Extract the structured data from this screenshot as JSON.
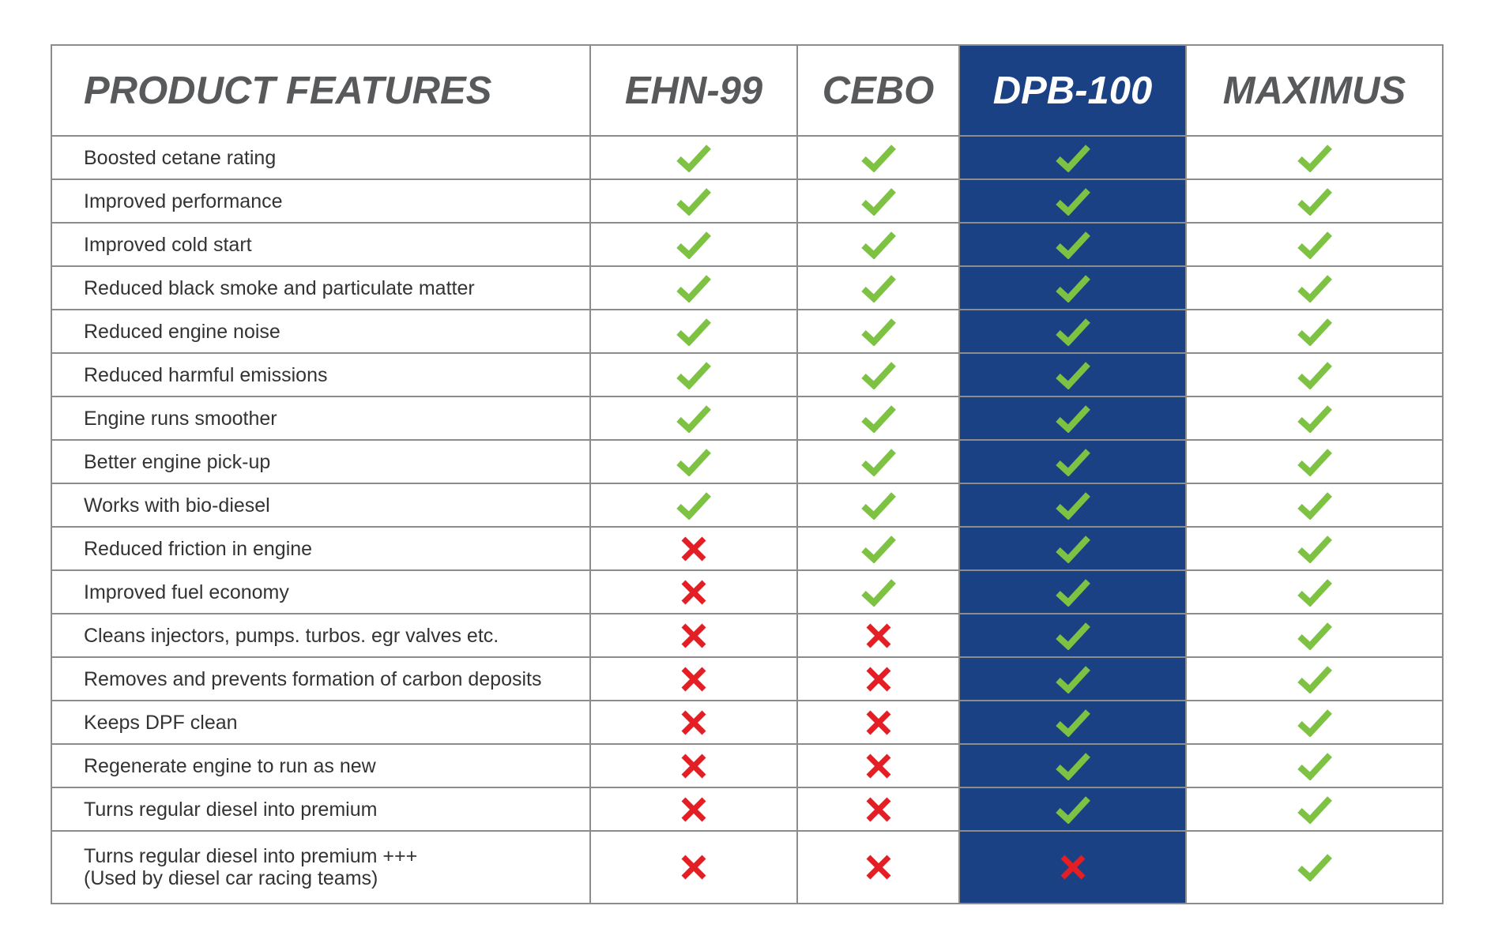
{
  "chart_data": {
    "type": "table",
    "header_label": "PRODUCT FEATURES",
    "products": [
      "EHN-99",
      "CEBO",
      "DPB-100",
      "MAXIMUS"
    ],
    "highlight_product": "DPB-100",
    "rows": [
      {
        "feature": [
          "Boosted cetane rating"
        ],
        "values": [
          true,
          true,
          true,
          true
        ]
      },
      {
        "feature": [
          "Improved performance"
        ],
        "values": [
          true,
          true,
          true,
          true
        ]
      },
      {
        "feature": [
          "Improved cold start"
        ],
        "values": [
          true,
          true,
          true,
          true
        ]
      },
      {
        "feature": [
          "Reduced black smoke and particulate matter"
        ],
        "values": [
          true,
          true,
          true,
          true
        ]
      },
      {
        "feature": [
          "Reduced engine noise"
        ],
        "values": [
          true,
          true,
          true,
          true
        ]
      },
      {
        "feature": [
          "Reduced harmful emissions"
        ],
        "values": [
          true,
          true,
          true,
          true
        ]
      },
      {
        "feature": [
          "Engine runs smoother"
        ],
        "values": [
          true,
          true,
          true,
          true
        ]
      },
      {
        "feature": [
          "Better engine pick-up"
        ],
        "values": [
          true,
          true,
          true,
          true
        ]
      },
      {
        "feature": [
          "Works with bio-diesel"
        ],
        "values": [
          true,
          true,
          true,
          true
        ]
      },
      {
        "feature": [
          "Reduced friction in engine"
        ],
        "values": [
          false,
          true,
          true,
          true
        ]
      },
      {
        "feature": [
          "Improved fuel economy"
        ],
        "values": [
          false,
          true,
          true,
          true
        ]
      },
      {
        "feature": [
          "Cleans injectors, pumps. turbos. egr valves etc."
        ],
        "values": [
          false,
          false,
          true,
          true
        ]
      },
      {
        "feature": [
          "Removes and prevents formation of carbon deposits"
        ],
        "values": [
          false,
          false,
          true,
          true
        ]
      },
      {
        "feature": [
          "Keeps DPF clean"
        ],
        "values": [
          false,
          false,
          true,
          true
        ]
      },
      {
        "feature": [
          "Regenerate engine to run as new"
        ],
        "values": [
          false,
          false,
          true,
          true
        ]
      },
      {
        "feature": [
          "Turns regular diesel into premium"
        ],
        "values": [
          false,
          false,
          true,
          true
        ]
      },
      {
        "feature": [
          "Turns regular diesel into premium +++",
          "(Used by diesel car racing teams)"
        ],
        "values": [
          false,
          false,
          false,
          true
        ]
      }
    ]
  },
  "colors": {
    "highlight_bg": "#1b4185",
    "header_text": "#58595b",
    "highlight_header_text": "#ffffff",
    "check": "#7dc242",
    "cross": "#e31e24",
    "border": "#8c8c8c"
  },
  "icons": {
    "yes": "check-icon",
    "no": "cross-icon"
  }
}
